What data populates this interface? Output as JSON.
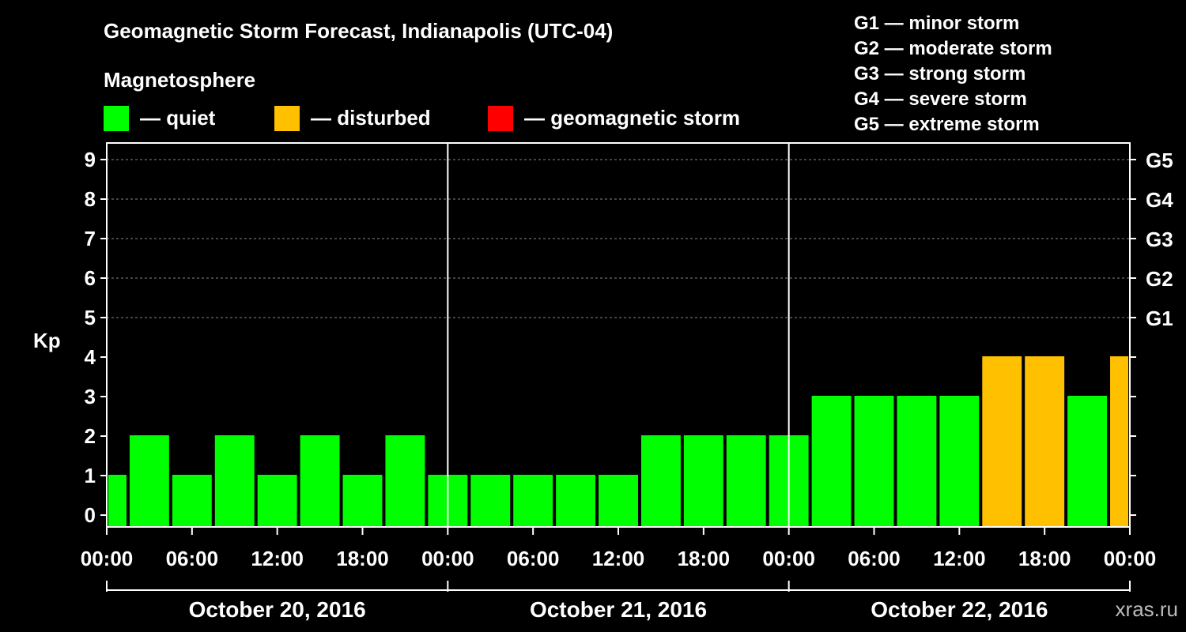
{
  "title": "Geomagnetic Storm Forecast, Indianapolis (UTC-04)",
  "subtitle": "Magnetosphere",
  "legend": [
    {
      "label": "— quiet",
      "color": "#00ff00"
    },
    {
      "label": "— disturbed",
      "color": "#ffc000"
    },
    {
      "label": "— geomagnetic storm",
      "color": "#ff0000"
    }
  ],
  "g_scale": [
    "G1 — minor storm",
    "G2 — moderate storm",
    "G3 — strong storm",
    "G4 — severe storm",
    "G5 — extreme storm"
  ],
  "watermark": "xras.ru",
  "chart_data": {
    "type": "bar",
    "title": "Geomagnetic Storm Forecast, Indianapolis (UTC-04)",
    "ylabel": "Kp",
    "ylim": [
      0,
      9
    ],
    "yticks": [
      0,
      1,
      2,
      3,
      4,
      5,
      6,
      7,
      8,
      9
    ],
    "g_levels": [
      {
        "label": "G1",
        "kp": 5
      },
      {
        "label": "G2",
        "kp": 6
      },
      {
        "label": "G3",
        "kp": 7
      },
      {
        "label": "G4",
        "kp": 8
      },
      {
        "label": "G5",
        "kp": 9
      }
    ],
    "xtick_labels": [
      "00:00",
      "06:00",
      "12:00",
      "18:00",
      "00:00",
      "06:00",
      "12:00",
      "18:00",
      "00:00",
      "06:00",
      "12:00",
      "18:00",
      "00:00"
    ],
    "days": [
      "October 20, 2016",
      "October 21, 2016",
      "October 22, 2016"
    ],
    "hours_total": 72,
    "bars": [
      {
        "start": 0,
        "end": 1.5,
        "kp": 1,
        "status": "quiet"
      },
      {
        "start": 1.5,
        "end": 4.5,
        "kp": 2,
        "status": "quiet"
      },
      {
        "start": 4.5,
        "end": 7.5,
        "kp": 1,
        "status": "quiet"
      },
      {
        "start": 7.5,
        "end": 10.5,
        "kp": 2,
        "status": "quiet"
      },
      {
        "start": 10.5,
        "end": 13.5,
        "kp": 1,
        "status": "quiet"
      },
      {
        "start": 13.5,
        "end": 16.5,
        "kp": 2,
        "status": "quiet"
      },
      {
        "start": 16.5,
        "end": 19.5,
        "kp": 1,
        "status": "quiet"
      },
      {
        "start": 19.5,
        "end": 22.5,
        "kp": 2,
        "status": "quiet"
      },
      {
        "start": 22.5,
        "end": 25.5,
        "kp": 1,
        "status": "quiet"
      },
      {
        "start": 25.5,
        "end": 28.5,
        "kp": 1,
        "status": "quiet"
      },
      {
        "start": 28.5,
        "end": 31.5,
        "kp": 1,
        "status": "quiet"
      },
      {
        "start": 31.5,
        "end": 34.5,
        "kp": 1,
        "status": "quiet"
      },
      {
        "start": 34.5,
        "end": 37.5,
        "kp": 1,
        "status": "quiet"
      },
      {
        "start": 37.5,
        "end": 40.5,
        "kp": 2,
        "status": "quiet"
      },
      {
        "start": 40.5,
        "end": 43.5,
        "kp": 2,
        "status": "quiet"
      },
      {
        "start": 43.5,
        "end": 46.5,
        "kp": 2,
        "status": "quiet"
      },
      {
        "start": 46.5,
        "end": 49.5,
        "kp": 2,
        "status": "quiet"
      },
      {
        "start": 49.5,
        "end": 52.5,
        "kp": 3,
        "status": "quiet"
      },
      {
        "start": 52.5,
        "end": 55.5,
        "kp": 3,
        "status": "quiet"
      },
      {
        "start": 55.5,
        "end": 58.5,
        "kp": 3,
        "status": "quiet"
      },
      {
        "start": 58.5,
        "end": 61.5,
        "kp": 3,
        "status": "quiet"
      },
      {
        "start": 61.5,
        "end": 64.5,
        "kp": 4,
        "status": "disturbed"
      },
      {
        "start": 64.5,
        "end": 67.5,
        "kp": 4,
        "status": "disturbed"
      },
      {
        "start": 67.5,
        "end": 70.5,
        "kp": 3,
        "status": "quiet"
      },
      {
        "start": 70.5,
        "end": 72,
        "kp": 4,
        "status": "disturbed"
      }
    ]
  }
}
